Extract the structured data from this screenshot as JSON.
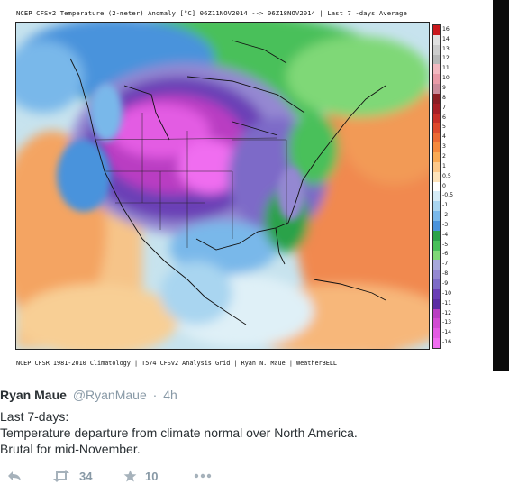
{
  "map": {
    "header": "NCEP CFSv2 Temperature (2-meter) Anomaly   [°C]  06Z11NOV2014  -->  06Z18NOV2014  | Last 7 -days Average",
    "footer": "NCEP CFSR 1981-2010 Climatology | T574 CFSv2 Analysis Grid | Ryan N. Maue | WeatherBELL",
    "colorbar": {
      "labels": [
        "16",
        "14",
        "13",
        "12",
        "11",
        "10",
        "9",
        "8",
        "7",
        "6",
        "5",
        "4",
        "3",
        "2",
        "1",
        "0.5",
        "0",
        "-0.5",
        "-1",
        "-2",
        "-3",
        "-4",
        "-5",
        "-6",
        "-7",
        "-8",
        "-9",
        "-10",
        "-11",
        "-12",
        "-13",
        "-14",
        "-16"
      ],
      "colors": [
        "#c9181c",
        "#e0e0e0",
        "#cccccc",
        "#b7b7b7",
        "#f2b8c0",
        "#e89aa7",
        "#c98a9a",
        "#8c1e24",
        "#a82026",
        "#c83028",
        "#de4a2d",
        "#ec6a34",
        "#f58a3e",
        "#f9aa55",
        "#fcc88a",
        "#fde3bb",
        "#ffffff",
        "#d6ecf7",
        "#a9d5f0",
        "#79b8ea",
        "#4a93dc",
        "#2ca24a",
        "#48c05a",
        "#7fd877",
        "#a7a8da",
        "#9488d2",
        "#7d6bc8",
        "#6a3fb6",
        "#5b2da4",
        "#b93ec2",
        "#d14bd2",
        "#e35be3",
        "#f06df0"
      ]
    }
  },
  "tweet": {
    "author_name": "Ryan Maue",
    "author_handle": "@RyanMaue",
    "separator": "·",
    "time": "4h",
    "lines": [
      "Last 7-days:",
      "Temperature departure from climate normal over North America.",
      "Brutal for mid-November."
    ],
    "retweet_count": "34",
    "favorite_count": "10",
    "icons": [
      "reply-icon",
      "retweet-icon",
      "favorite-icon",
      "more-icon"
    ]
  }
}
